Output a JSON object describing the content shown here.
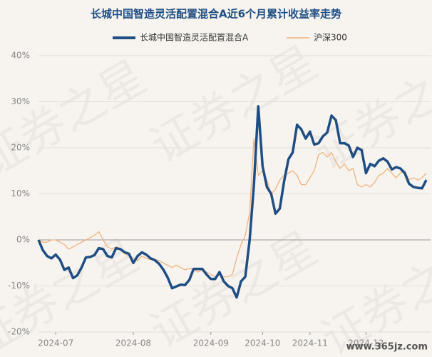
{
  "chart_data": {
    "type": "line",
    "title": "长城中国智造灵活配置混合A近6个月累计收益率走势",
    "watermark": "证券之星",
    "source_mark": "www.365jz.com",
    "categories": [
      null,
      null,
      null,
      null,
      "2024-07",
      null,
      null,
      null,
      null,
      null,
      null,
      null,
      null,
      null,
      null,
      null,
      null,
      null,
      null,
      null,
      null,
      null,
      "2024-08",
      null,
      null,
      null,
      null,
      null,
      null,
      null,
      null,
      null,
      null,
      null,
      null,
      null,
      null,
      null,
      null,
      null,
      "2024-09",
      null,
      null,
      null,
      null,
      null,
      null,
      null,
      null,
      null,
      null,
      null,
      "2024-10",
      null,
      null,
      null,
      null,
      null,
      null,
      null,
      null,
      null,
      null,
      "2024-11",
      null,
      null,
      null,
      null,
      null,
      null,
      null,
      null,
      null,
      null,
      null,
      null,
      "2024-12",
      null,
      null,
      null,
      null,
      null,
      null,
      null,
      null,
      null,
      null,
      null,
      null,
      null,
      null
    ],
    "series": [
      {
        "name": "长城中国智造灵活配置混合A",
        "color": "#1f4e84",
        "values": [
          0,
          -2.2,
          -3.5,
          -4,
          -3.2,
          -4.3,
          -6.5,
          -6,
          -8.3,
          -7.7,
          -6,
          -3.8,
          -3.7,
          -3.3,
          -1.8,
          -2,
          -3.5,
          -3.8,
          -1.8,
          -2,
          -2.7,
          -3,
          -5,
          -3.5,
          -2.7,
          -3.2,
          -4,
          -4.4,
          -5.2,
          -6.5,
          -8.2,
          -10.5,
          -10.1,
          -9.7,
          -9.8,
          -8.7,
          -6.3,
          -6.3,
          -6.3,
          -7.5,
          -8.5,
          -8.5,
          -7,
          -9,
          -10,
          -10.5,
          -12.5,
          -9,
          -8,
          0,
          12,
          29,
          16,
          11.5,
          10,
          5.7,
          6.8,
          12.7,
          17.5,
          19,
          25,
          24,
          22,
          23.5,
          20.7,
          21,
          22.5,
          23.3,
          27,
          26,
          21,
          21,
          20.5,
          18,
          20,
          19.5,
          14.5,
          16.5,
          16,
          17.2,
          17.7,
          17,
          15.3,
          15.8,
          15.5,
          14.5,
          12.2,
          11.5,
          11.3,
          11.2,
          13
        ]
      },
      {
        "name": "沪深300",
        "color": "#f2b27e",
        "values": [
          0,
          -0.5,
          -0.5,
          0,
          0,
          -0.5,
          -1,
          -2,
          -1.5,
          -1,
          -0.5,
          0,
          0.5,
          1,
          1.8,
          0,
          -1.5,
          -2,
          -1.5,
          -2,
          -3,
          -3.5,
          -4,
          -4.5,
          -3.5,
          -4,
          -4.3,
          -4.2,
          -4.5,
          -5,
          -5.5,
          -6,
          -5.5,
          -6,
          -6.5,
          -6.2,
          -6.5,
          -7,
          -6.5,
          -7,
          -7.5,
          -8,
          -7.5,
          -8,
          -8,
          -7.5,
          -4,
          -1,
          1,
          6,
          22,
          14,
          15,
          13,
          10,
          11,
          13,
          14,
          14.5,
          15,
          14,
          12,
          12,
          13.5,
          15,
          18.5,
          19,
          18,
          19,
          17,
          15.5,
          16.5,
          15,
          15.5,
          12,
          11.5,
          12,
          11.5,
          12.5,
          14,
          14.5,
          15.5,
          14.5,
          13.5,
          14.5,
          15,
          13,
          13.5,
          13,
          13.5,
          14.5
        ]
      }
    ],
    "ylim": [
      -20,
      40
    ],
    "yticks": [
      {
        "value": -20,
        "label": "-20%"
      },
      {
        "value": -10,
        "label": "-10%"
      },
      {
        "value": 0,
        "label": "0%"
      },
      {
        "value": 10,
        "label": "10%"
      },
      {
        "value": 20,
        "label": "20%"
      },
      {
        "value": 30,
        "label": "30%"
      },
      {
        "value": 40,
        "label": "40%"
      }
    ],
    "grid": true,
    "legend": "top"
  }
}
